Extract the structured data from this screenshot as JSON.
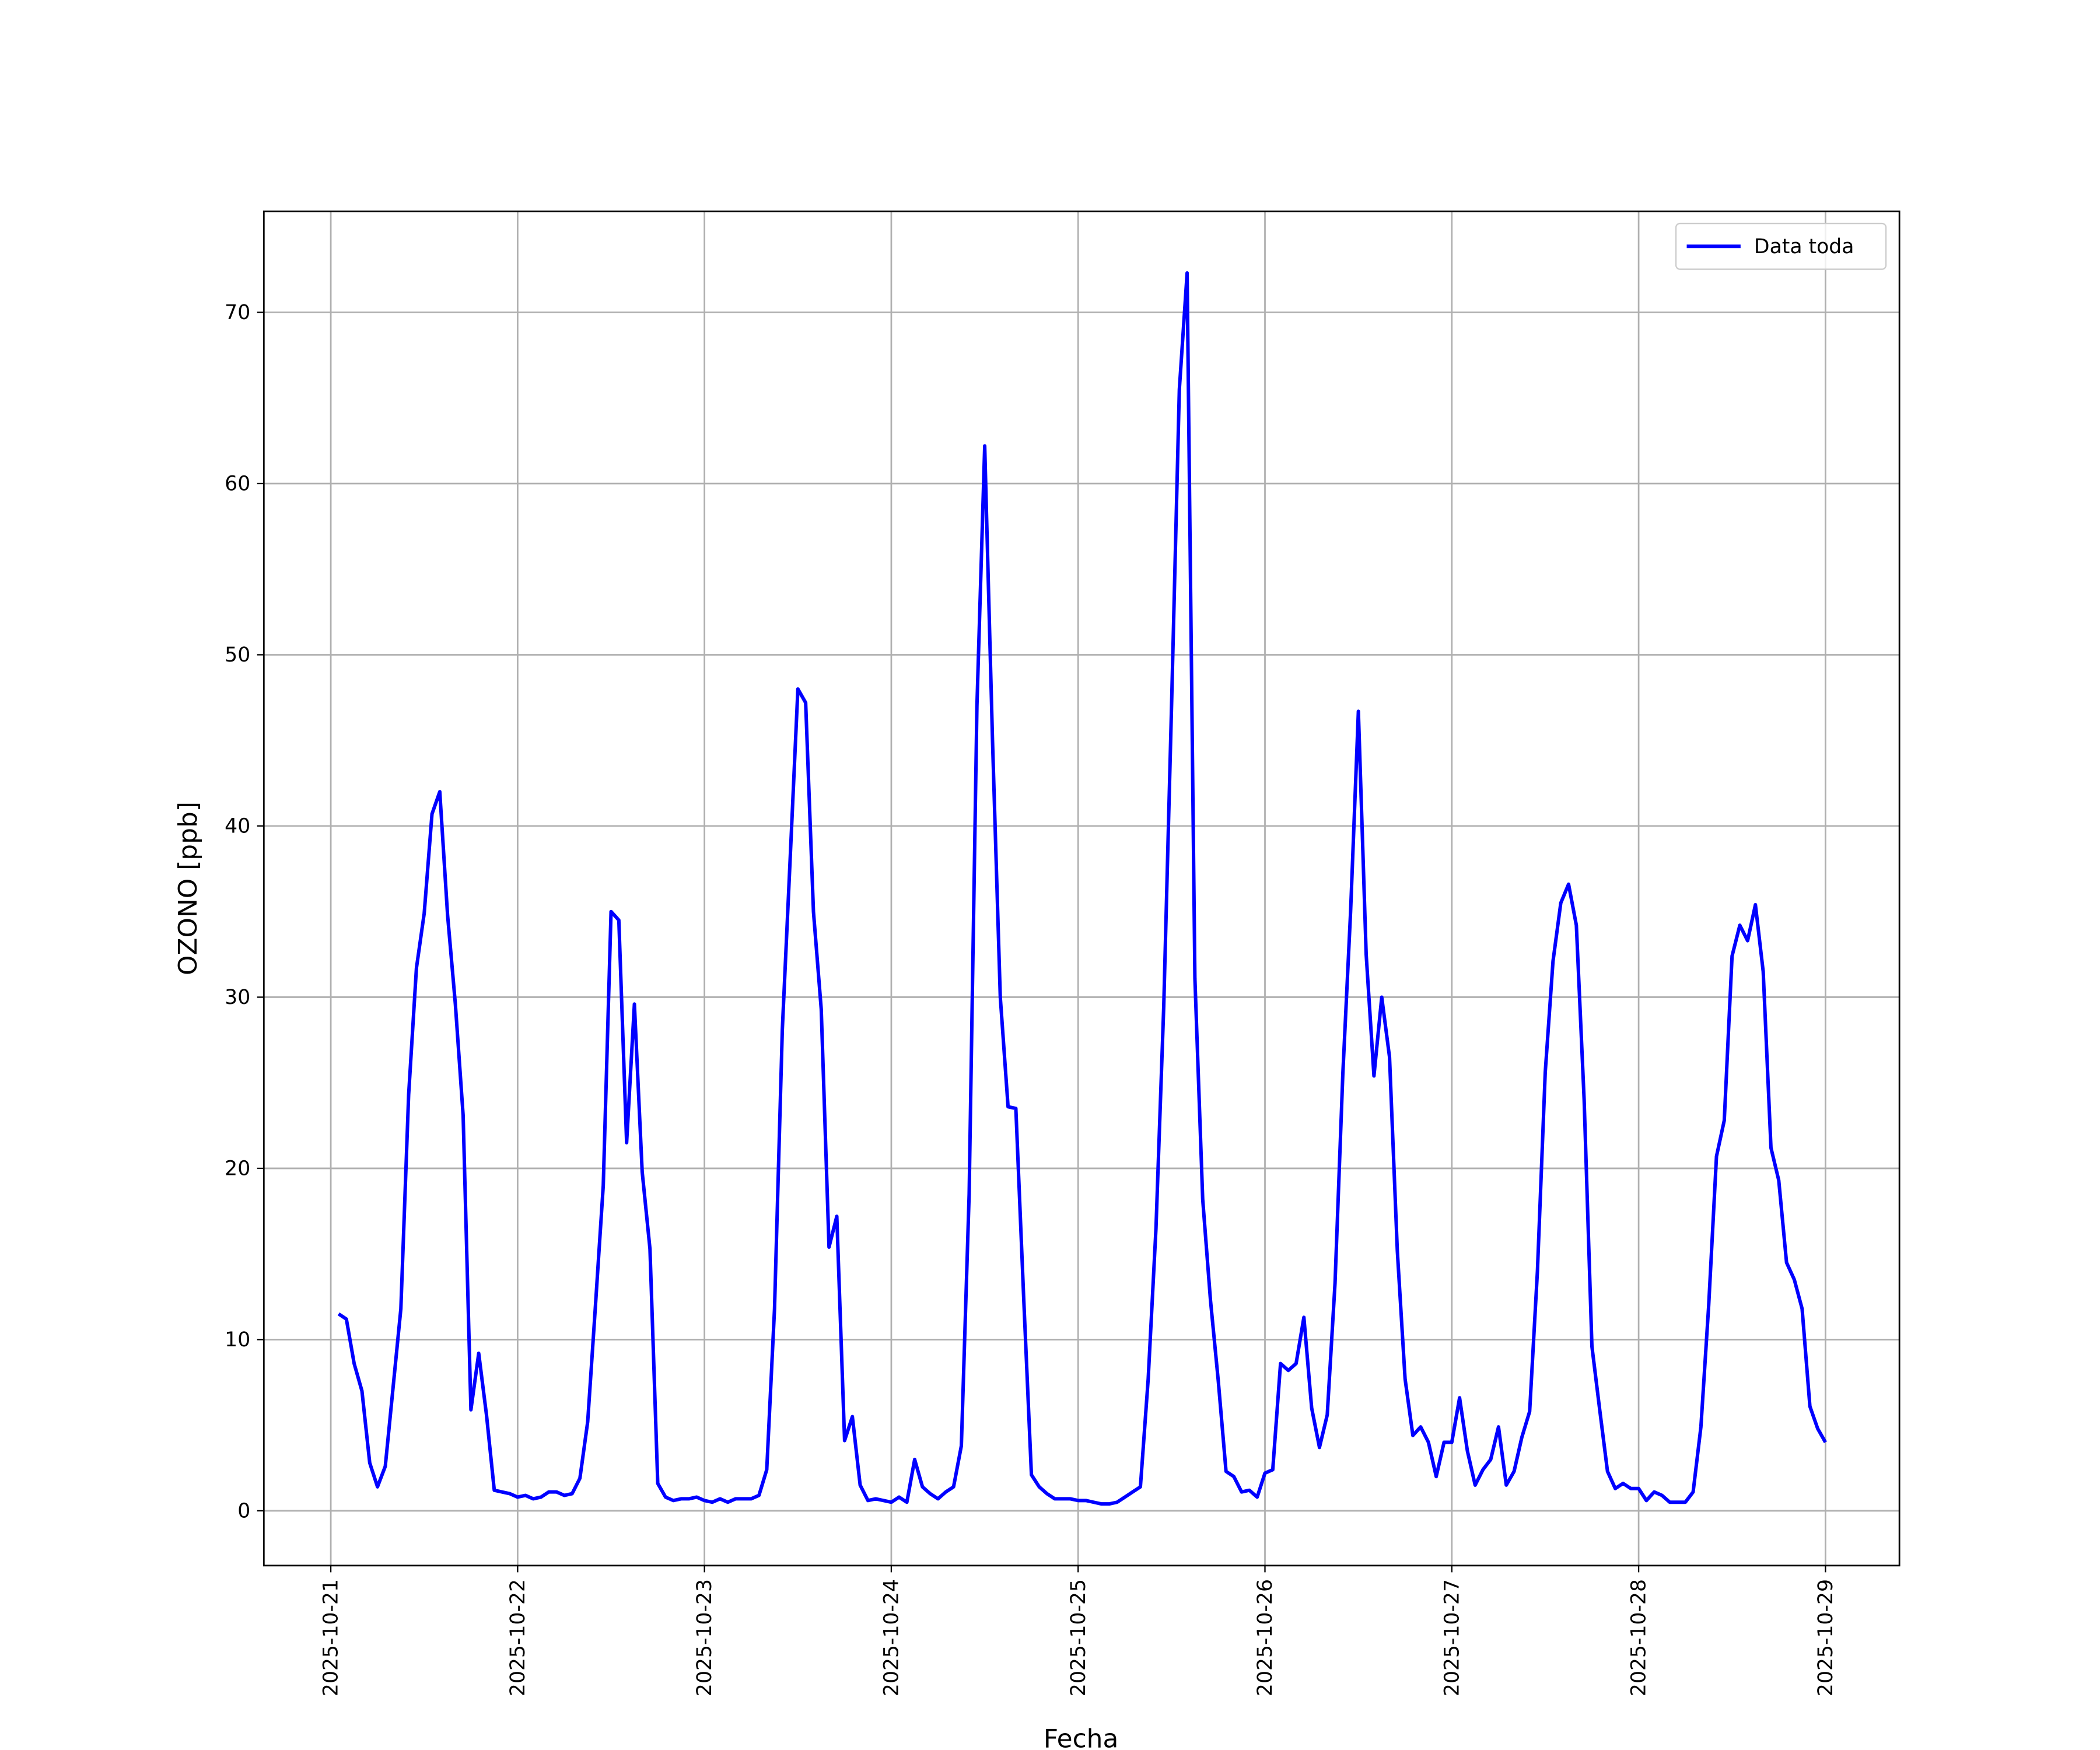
{
  "chart_data": {
    "type": "line",
    "x_label": "Fecha",
    "y_label": "OZONO [ppb]",
    "x": [
      1,
      2,
      3,
      4,
      5,
      6,
      7,
      8,
      9,
      10,
      11,
      12,
      13,
      14,
      15,
      16,
      17,
      18,
      19,
      20,
      21,
      22,
      23,
      24,
      25,
      26,
      27,
      28,
      29,
      30,
      31,
      32,
      33,
      34,
      35,
      36,
      37,
      38,
      39,
      40,
      41,
      42,
      43,
      44,
      45,
      46,
      47,
      48,
      49,
      50,
      51,
      52,
      53,
      54,
      55,
      56,
      57,
      58,
      59,
      60,
      61,
      62,
      63,
      64,
      65,
      66,
      67,
      68,
      69,
      70,
      71,
      72,
      73,
      74,
      75,
      76,
      77,
      78,
      79,
      80,
      81,
      82,
      83,
      84,
      85,
      86,
      87,
      88,
      89,
      90,
      91,
      92,
      93,
      94,
      95,
      96,
      97,
      98,
      99,
      100,
      101,
      102,
      103,
      104,
      105,
      106,
      107,
      108,
      109,
      110,
      111,
      112,
      113,
      114,
      115,
      116,
      117,
      118,
      119,
      120,
      121,
      122,
      123,
      124,
      125,
      126,
      127,
      128,
      129,
      130,
      131,
      132,
      133,
      134,
      135,
      136,
      137,
      138,
      139,
      140,
      141,
      142,
      143,
      144,
      145,
      146,
      147,
      148,
      149,
      150,
      151,
      152,
      153,
      154,
      155,
      156,
      157,
      158,
      159,
      160,
      161,
      162,
      163,
      164,
      165,
      166,
      167,
      168,
      169,
      170,
      171,
      172,
      173,
      174,
      175,
      176,
      177,
      178,
      179,
      180,
      181,
      182,
      183,
      184,
      185,
      186,
      187,
      188,
      189,
      190,
      191,
      192
    ],
    "series": [
      {
        "name": "Data toda",
        "color": "#0000ff",
        "values": [
          11.5,
          11.2,
          8.6,
          7.0,
          2.8,
          1.4,
          2.6,
          7.2,
          11.8,
          24.3,
          31.7,
          34.9,
          40.7,
          42.0,
          34.8,
          29.6,
          23.1,
          5.9,
          9.2,
          5.6,
          1.2,
          1.1,
          1.0,
          0.8,
          0.9,
          0.7,
          0.8,
          1.1,
          1.1,
          0.9,
          1.0,
          1.9,
          5.2,
          12.0,
          19.0,
          35.0,
          34.5,
          21.5,
          29.6,
          19.8,
          15.3,
          1.6,
          0.8,
          0.6,
          0.7,
          0.7,
          0.8,
          0.6,
          0.5,
          0.7,
          0.5,
          0.7,
          0.7,
          0.7,
          0.9,
          2.4,
          11.8,
          28.1,
          38.0,
          48.0,
          47.2,
          35.0,
          29.3,
          15.4,
          17.2,
          4.1,
          5.5,
          1.5,
          0.6,
          0.7,
          0.6,
          0.5,
          0.8,
          0.5,
          3.0,
          1.4,
          1.0,
          0.7,
          1.1,
          1.4,
          3.8,
          18.5,
          47.0,
          62.2,
          45.0,
          30.0,
          23.6,
          23.5,
          12.5,
          2.1,
          1.4,
          1.0,
          0.7,
          0.7,
          0.7,
          0.6,
          0.6,
          0.5,
          0.4,
          0.4,
          0.5,
          0.8,
          1.1,
          1.4,
          7.7,
          16.5,
          29.5,
          47.0,
          65.5,
          72.3,
          31.1,
          18.2,
          12.3,
          7.6,
          2.3,
          2.0,
          1.1,
          1.2,
          0.8,
          2.2,
          2.4,
          8.6,
          8.2,
          8.6,
          11.3,
          6.0,
          3.7,
          5.6,
          13.3,
          25.5,
          35.0,
          46.7,
          32.5,
          25.4,
          30.0,
          26.5,
          15.2,
          7.7,
          4.4,
          4.9,
          4.0,
          2.0,
          4.0,
          4.0,
          6.6,
          3.5,
          1.5,
          2.4,
          3.0,
          4.9,
          1.5,
          2.3,
          4.3,
          5.8,
          14.0,
          25.6,
          32.1,
          35.5,
          36.6,
          34.2,
          24.0,
          9.6,
          5.9,
          2.3,
          1.3,
          1.6,
          1.3,
          1.3,
          0.6,
          1.1,
          0.9,
          0.5,
          0.5,
          0.5,
          1.1,
          4.9,
          12.0,
          20.7,
          22.8,
          32.4,
          34.2,
          33.3,
          35.4,
          31.5,
          21.2,
          19.3,
          14.5,
          13.5,
          11.8,
          6.1,
          4.8,
          4.0
        ]
      }
    ],
    "xlim": [
      -8.6,
      201.5
    ],
    "xticks": [
      {
        "value": 0,
        "label": "2025-10-21"
      },
      {
        "value": 24,
        "label": "2025-10-22"
      },
      {
        "value": 48,
        "label": "2025-10-23"
      },
      {
        "value": 72,
        "label": "2025-10-24"
      },
      {
        "value": 96,
        "label": "2025-10-25"
      },
      {
        "value": 120,
        "label": "2025-10-26"
      },
      {
        "value": 144,
        "label": "2025-10-27"
      },
      {
        "value": 168,
        "label": "2025-10-28"
      },
      {
        "value": 192,
        "label": "2025-10-29"
      }
    ],
    "ylim": [
      -3.2,
      75.9
    ],
    "yticks": [
      0,
      10,
      20,
      30,
      40,
      50,
      60,
      70
    ],
    "grid": true,
    "legend": "upper right"
  }
}
